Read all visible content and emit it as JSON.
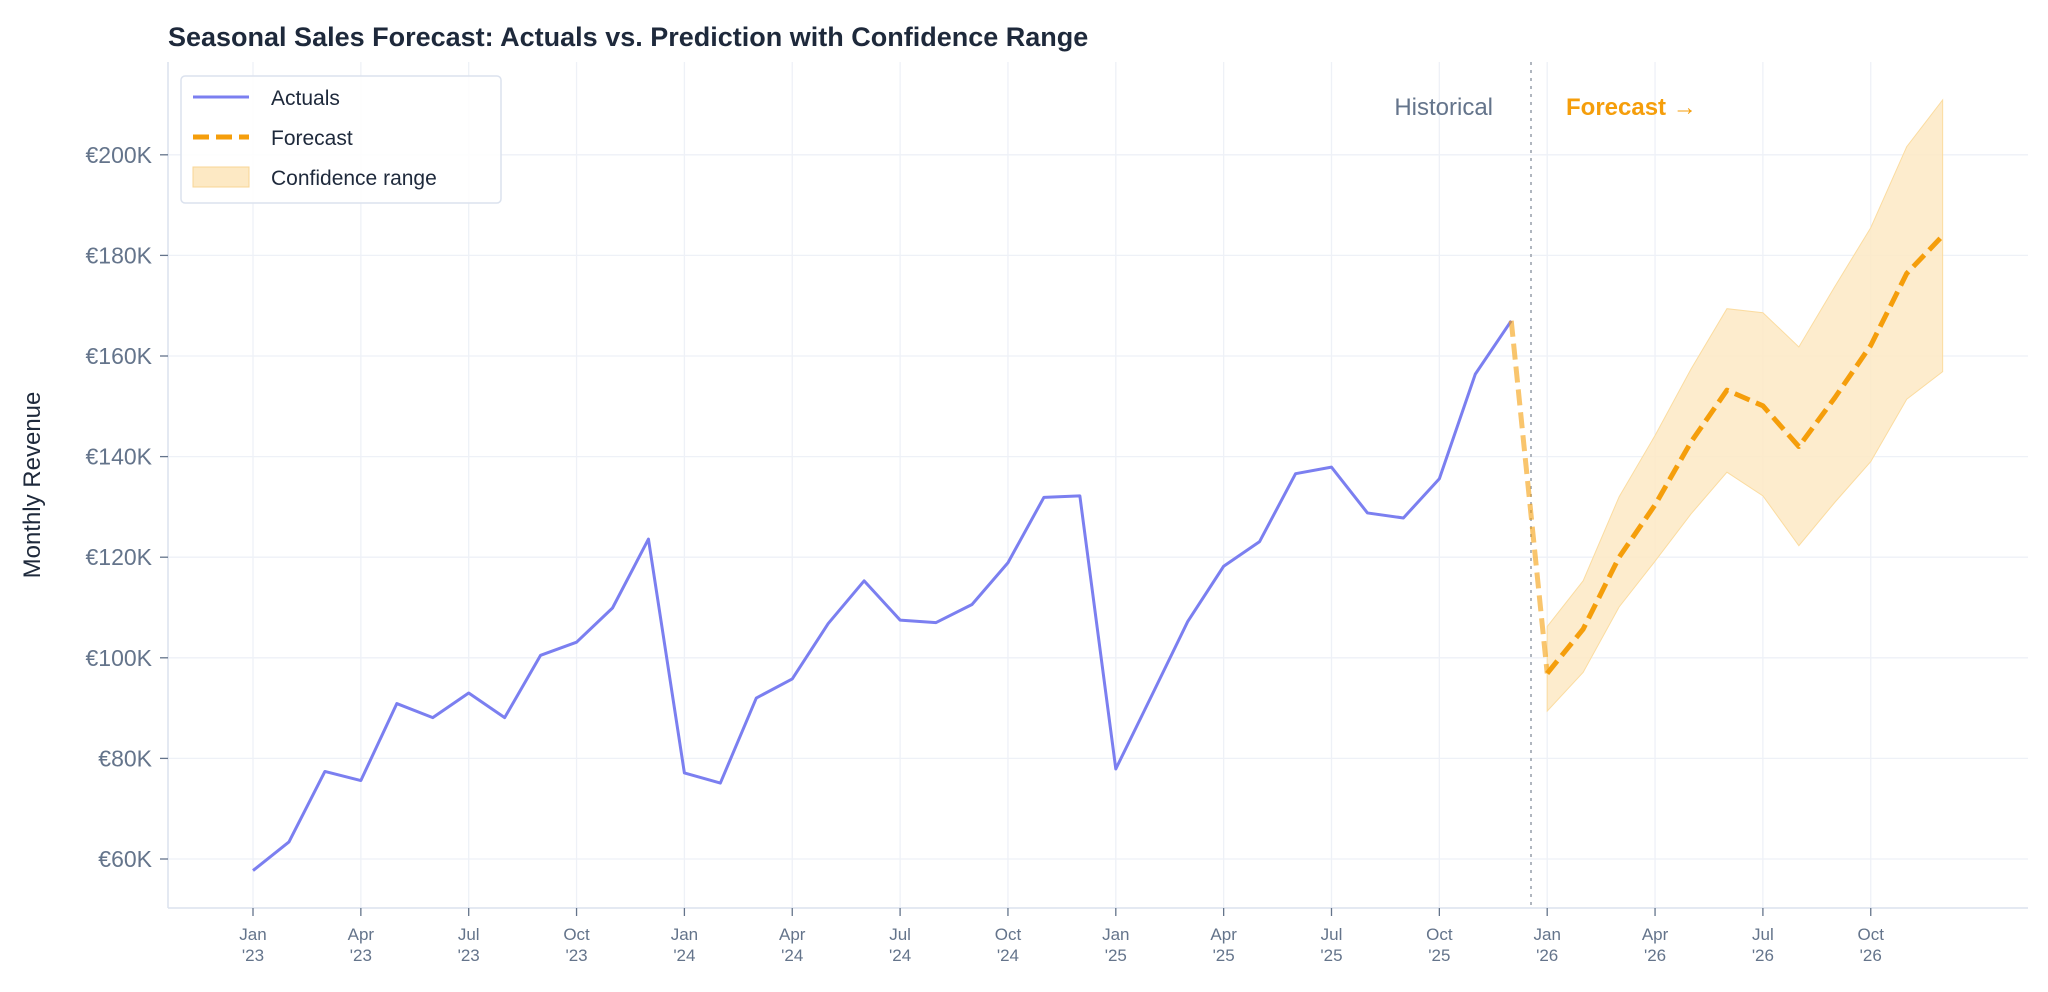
{
  "chart_data": {
    "type": "line",
    "title": "Seasonal Sales Forecast: Actuals vs. Prediction with Confidence Range",
    "xlabel": "",
    "ylabel": "Monthly Revenue",
    "ylim": [
      50,
      220
    ],
    "y_ticks": [
      60,
      80,
      100,
      120,
      140,
      160,
      180,
      200
    ],
    "y_tick_labels": [
      "€60K",
      "€80K",
      "€100K",
      "€120K",
      "€140K",
      "€160K",
      "€180K",
      "€200K"
    ],
    "x_tick_labels": [
      [
        "Jan",
        "'23"
      ],
      [
        "Apr",
        "'23"
      ],
      [
        "Jul",
        "'23"
      ],
      [
        "Oct",
        "'23"
      ],
      [
        "Jan",
        "'24"
      ],
      [
        "Apr",
        "'24"
      ],
      [
        "Jul",
        "'24"
      ],
      [
        "Oct",
        "'24"
      ],
      [
        "Jan",
        "'25"
      ],
      [
        "Apr",
        "'25"
      ],
      [
        "Jul",
        "'25"
      ],
      [
        "Oct",
        "'25"
      ],
      [
        "Jan",
        "'26"
      ],
      [
        "Apr",
        "'26"
      ],
      [
        "Jul",
        "'26"
      ],
      [
        "Oct",
        "'26"
      ]
    ],
    "grid": true,
    "legend_position": "top-left",
    "units": "thousand EUR",
    "series": [
      {
        "name": "Actuals",
        "color": "#7b7ff0",
        "start": "Jan 2023",
        "values": [
          57.7,
          63.4,
          77.4,
          75.6,
          90.9,
          88.1,
          93.0,
          88.1,
          100.5,
          103.1,
          109.9,
          123.6,
          77.1,
          75.1,
          92.0,
          95.8,
          106.8,
          115.3,
          107.5,
          107.0,
          110.6,
          118.9,
          131.9,
          132.2,
          77.9,
          92.5,
          107.2,
          118.2,
          123.1,
          136.6,
          137.9,
          128.8,
          127.8,
          135.6,
          156.4,
          167.0
        ]
      },
      {
        "name": "Forecast",
        "color": "#f59e0b",
        "start": "Dec 2025",
        "values": [
          167.0,
          96.9,
          105.7,
          120.0,
          130.4,
          142.9,
          153.2,
          150.1,
          142.0,
          151.7,
          162.1,
          176.4,
          183.9
        ]
      },
      {
        "name": "Confidence range",
        "color": "#fde9c4",
        "start": "Jan 2026",
        "upper": [
          106.2,
          115.3,
          132.0,
          144.2,
          157.4,
          169.4,
          168.6,
          161.8,
          173.8,
          185.5,
          201.6,
          210.9
        ],
        "lower": [
          89.4,
          97.1,
          110.1,
          119.2,
          128.6,
          136.9,
          132.2,
          122.3,
          130.9,
          139.0,
          151.4,
          156.9
        ]
      }
    ],
    "annotations": {
      "historical": "Historical",
      "forecast": "Forecast →",
      "divider": "Dec 2025 / Jan 2026"
    }
  }
}
